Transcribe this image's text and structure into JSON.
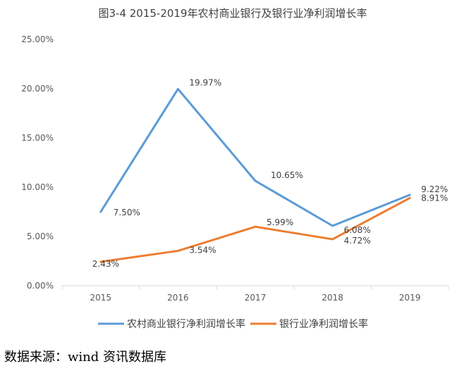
{
  "chart_data": {
    "type": "line",
    "title": "图3-4 2015-2019年农村商业银行及银行业净利润增长率",
    "categories": [
      "2015",
      "2016",
      "2017",
      "2018",
      "2019"
    ],
    "yticks": [
      "0.00%",
      "5.00%",
      "10.00%",
      "15.00%",
      "20.00%",
      "25.00%"
    ],
    "ylim": [
      0,
      25
    ],
    "grid": false,
    "legend_position": "bottom",
    "series": [
      {
        "name": "农村商业银行净利润增长率",
        "color": "#5B9BD5",
        "values": [
          7.5,
          19.97,
          10.65,
          6.08,
          9.22
        ],
        "labels": [
          "7.50%",
          "19.97%",
          "10.65%",
          "6.08%",
          "9.22%"
        ]
      },
      {
        "name": "银行业净利润增长率",
        "color": "#ED7D31",
        "values": [
          2.43,
          3.54,
          5.99,
          4.72,
          8.91
        ],
        "labels": [
          "2.43%",
          "3.54%",
          "5.99%",
          "4.72%",
          "8.91%"
        ]
      }
    ]
  },
  "source_note": "数据来源：wind 资讯数据库"
}
